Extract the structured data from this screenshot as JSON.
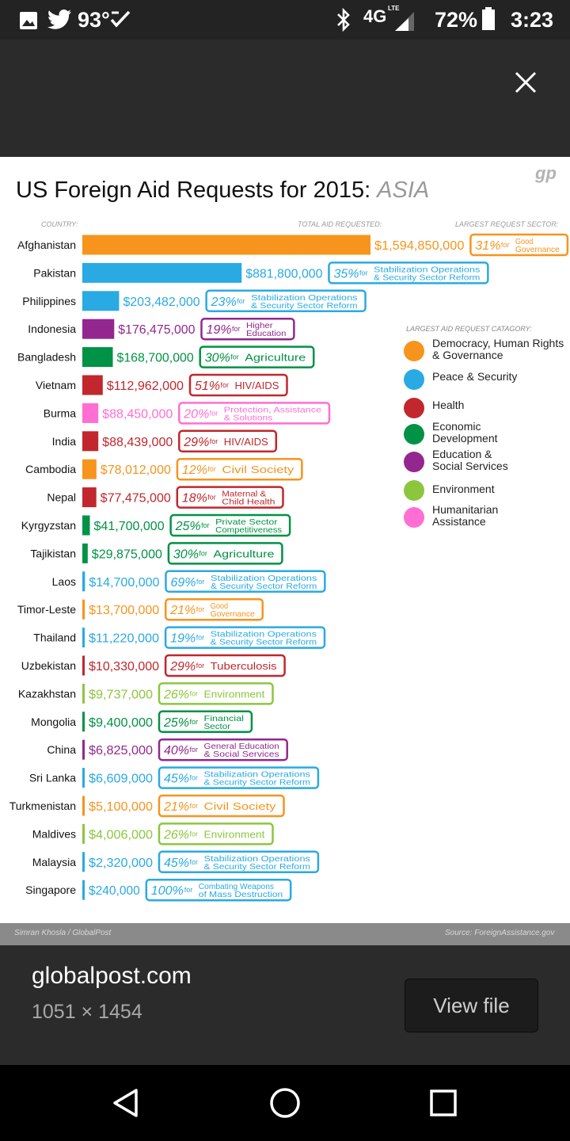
{
  "status_bar": {
    "temperature": "93°",
    "network": "4G",
    "network_sub": "LTE",
    "battery": "72%",
    "time": "3:23"
  },
  "viewer": {
    "site": "globalpost.com",
    "dimensions": "1051 × 1454",
    "view_file_label": "View file"
  },
  "image": {
    "logo": "gp",
    "title": "US Foreign Aid Requests for 2015:",
    "title_highlight": "ASIA",
    "col_country": "COUNTRY:",
    "col_total": "TOTAL AID REQUESTED:",
    "col_sector": "LARGEST REQUEST SECTOR:",
    "legend_title": "LARGEST AID REQUEST CATAGORY:",
    "legend": [
      {
        "label": "Democracy, Human Rights & Governance",
        "color": "#f7941d"
      },
      {
        "label": "Peace & Security",
        "color": "#29aae2"
      },
      {
        "label": "Health",
        "color": "#c1272d"
      },
      {
        "label": "Economic Development",
        "color": "#009245"
      },
      {
        "label": "Education & Social Services",
        "color": "#93278f"
      },
      {
        "label": "Environment",
        "color": "#8cc63f"
      },
      {
        "label": "Humanitarian Assistance",
        "color": "#ff6ed3"
      }
    ],
    "credit_left": "Simran Khosla / GlobalPost",
    "credit_right": "Source: ForeignAssistance.gov"
  },
  "chart_data": {
    "type": "bar",
    "title": "US Foreign Aid Requests for 2015: ASIA",
    "xlabel": "TOTAL AID REQUESTED:",
    "ylabel": "COUNTRY:",
    "rows": [
      {
        "country": "Afghanistan",
        "label": "$1,594,850,000",
        "value": 1594850000,
        "color": "#f7941d",
        "pct": "31%",
        "sector": "Good Governance"
      },
      {
        "country": "Pakistan",
        "label": "$881,800,000",
        "value": 881800000,
        "color": "#29aae2",
        "pct": "35%",
        "sector": "Stabilization Operations & Security Sector Reform"
      },
      {
        "country": "Philippines",
        "label": "$203,482,000",
        "value": 203482000,
        "color": "#29aae2",
        "pct": "23%",
        "sector": "Stabilization Operations & Security Sector Reform"
      },
      {
        "country": "Indonesia",
        "label": "$176,475,000",
        "value": 176475000,
        "color": "#93278f",
        "pct": "19%",
        "sector": "Higher Education"
      },
      {
        "country": "Bangladesh",
        "label": "$168,700,000",
        "value": 168700000,
        "color": "#009245",
        "pct": "30%",
        "sector": "Agriculture"
      },
      {
        "country": "Vietnam",
        "label": "$112,962,000",
        "value": 112962000,
        "color": "#c1272d",
        "pct": "51%",
        "sector": "HIV/AIDS"
      },
      {
        "country": "Burma",
        "label": "$88,450,000",
        "value": 88450000,
        "color": "#ff6ed3",
        "pct": "20%",
        "sector": "Protection, Assistance & Solutions"
      },
      {
        "country": "India",
        "label": "$88,439,000",
        "value": 88439000,
        "color": "#c1272d",
        "pct": "29%",
        "sector": "HIV/AIDS"
      },
      {
        "country": "Cambodia",
        "label": "$78,012,000",
        "value": 78012000,
        "color": "#f7941d",
        "pct": "12%",
        "sector": "Civil Society"
      },
      {
        "country": "Nepal",
        "label": "$77,475,000",
        "value": 77475000,
        "color": "#c1272d",
        "pct": "18%",
        "sector": "Maternal & Child Health"
      },
      {
        "country": "Kyrgyzstan",
        "label": "$41,700,000",
        "value": 41700000,
        "color": "#009245",
        "pct": "25%",
        "sector": "Private Sector Competitiveness"
      },
      {
        "country": "Tajikistan",
        "label": "$29,875,000",
        "value": 29875000,
        "color": "#009245",
        "pct": "30%",
        "sector": "Agriculture"
      },
      {
        "country": "Laos",
        "label": "$14,700,000",
        "value": 14700000,
        "color": "#29aae2",
        "pct": "69%",
        "sector": "Stabilization Operations & Security Sector Reform"
      },
      {
        "country": "Timor-Leste",
        "label": "$13,700,000",
        "value": 13700000,
        "color": "#f7941d",
        "pct": "21%",
        "sector": "Good Governance"
      },
      {
        "country": "Thailand",
        "label": "$11,220,000",
        "value": 11220000,
        "color": "#29aae2",
        "pct": "19%",
        "sector": "Stabilization Operations & Security Sector Reform"
      },
      {
        "country": "Uzbekistan",
        "label": "$10,330,000",
        "value": 10330000,
        "color": "#c1272d",
        "pct": "29%",
        "sector": "Tuberculosis"
      },
      {
        "country": "Kazakhstan",
        "label": "$9,737,000",
        "value": 9737000,
        "color": "#8cc63f",
        "pct": "26%",
        "sector": "Environment"
      },
      {
        "country": "Mongolia",
        "label": "$9,400,000",
        "value": 9400000,
        "color": "#009245",
        "pct": "25%",
        "sector": "Financial Sector"
      },
      {
        "country": "China",
        "label": "$6,825,000",
        "value": 6825000,
        "color": "#93278f",
        "pct": "40%",
        "sector": "General Education & Social Services"
      },
      {
        "country": "Sri Lanka",
        "label": "$6,609,000",
        "value": 6609000,
        "color": "#29aae2",
        "pct": "45%",
        "sector": "Stabilization Operations & Security Sector Reform"
      },
      {
        "country": "Turkmenistan",
        "label": "$5,100,000",
        "value": 5100000,
        "color": "#f7941d",
        "pct": "21%",
        "sector": "Civil Society"
      },
      {
        "country": "Maldives",
        "label": "$4,006,000",
        "value": 4006000,
        "color": "#8cc63f",
        "pct": "26%",
        "sector": "Environment"
      },
      {
        "country": "Malaysia",
        "label": "$2,320,000",
        "value": 2320000,
        "color": "#29aae2",
        "pct": "45%",
        "sector": "Stabilization Operations & Security Sector Reform"
      },
      {
        "country": "Singapore",
        "label": "$240,000",
        "value": 240000,
        "color": "#29aae2",
        "pct": "100%",
        "sector": "Combating Weapons of Mass Destruction"
      }
    ],
    "for_word": "for"
  }
}
